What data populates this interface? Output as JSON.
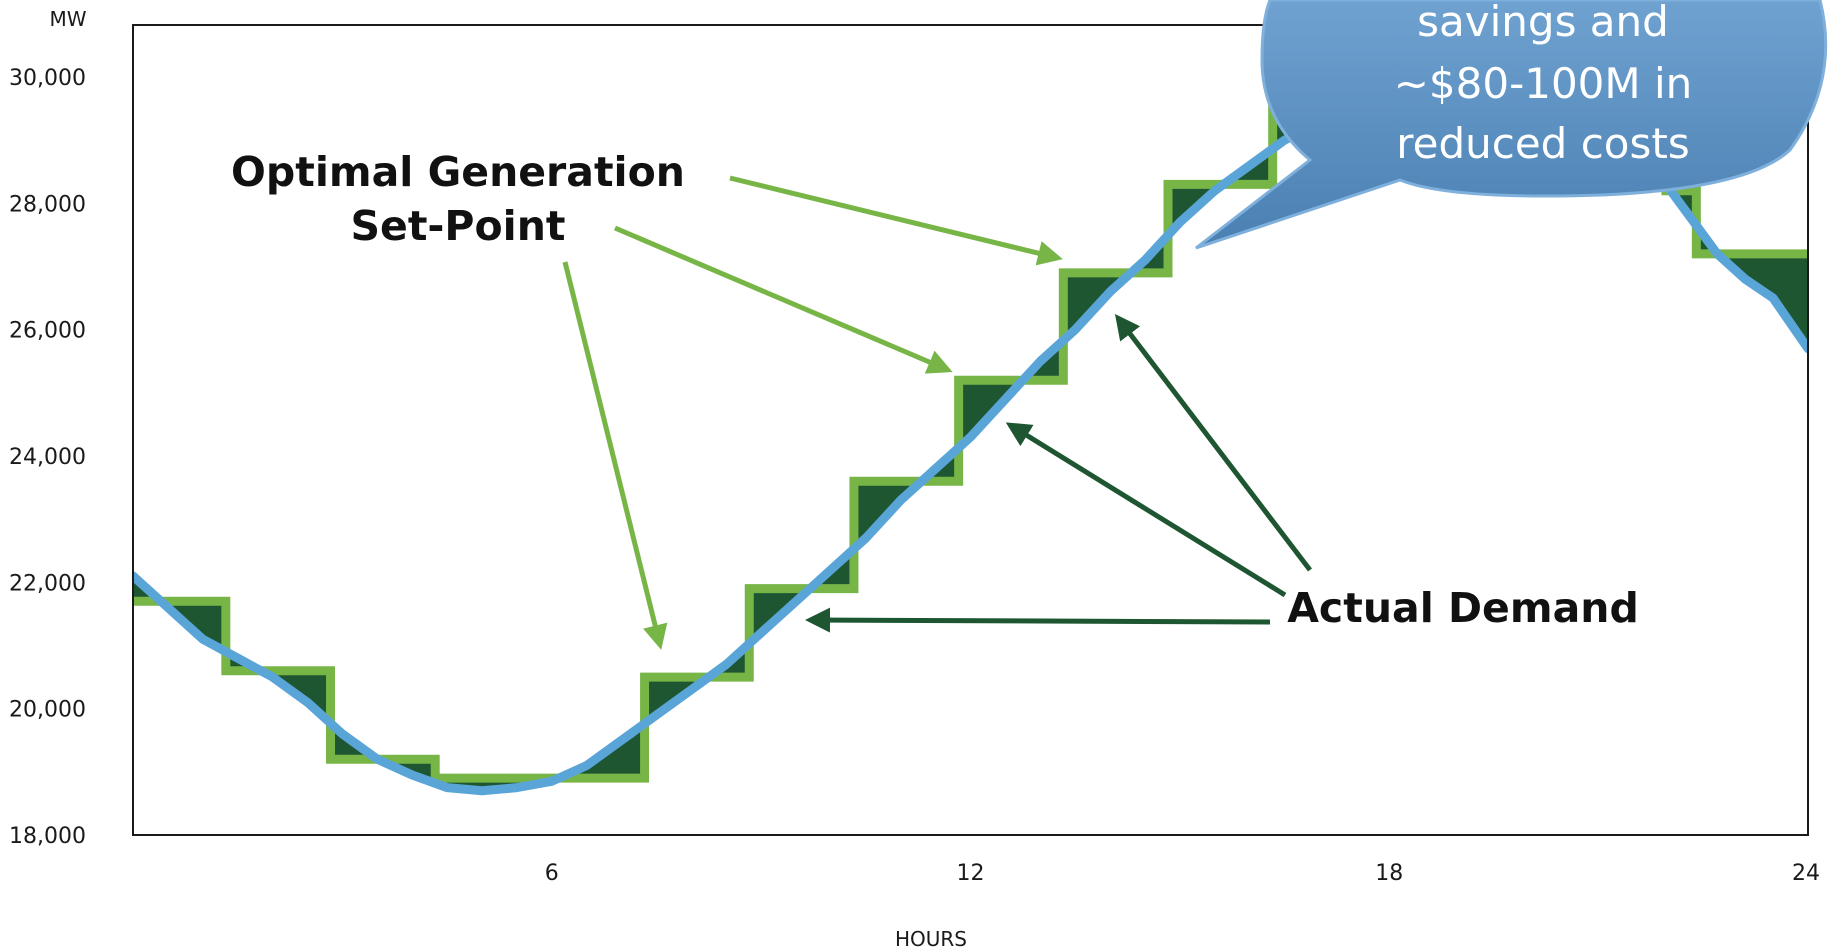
{
  "chart_data": {
    "type": "line",
    "title": "",
    "xlabel": "HOURS",
    "ylabel": "MW",
    "xlim": [
      0,
      24
    ],
    "ylim": [
      18000,
      30000
    ],
    "x_ticks": [
      6,
      12,
      18,
      24
    ],
    "x_tick_labels": [
      "6",
      "12",
      "18",
      "24"
    ],
    "y_ticks": [
      18000,
      20000,
      22000,
      24000,
      26000,
      28000,
      30000
    ],
    "y_tick_labels": [
      "18,000",
      "20,000",
      "22,000",
      "24,000",
      "26,000",
      "28,000",
      "30,000"
    ],
    "grid": false,
    "series": [
      {
        "name": "Optimal Generation Set-Point",
        "style": "step",
        "x": [
          0,
          1.33,
          2.83,
          4.33,
          5.83,
          7.33,
          8.83,
          10.33,
          11.83,
          13.33,
          14.83,
          16.33
        ],
        "values": [
          21700,
          20600,
          19200,
          18900,
          18900,
          20500,
          21900,
          23600,
          25200,
          26900,
          28300,
          29500
        ]
      },
      {
        "name": "Actual Demand",
        "style": "line",
        "x": [
          0,
          0.5,
          1.0,
          1.5,
          2.0,
          2.5,
          3.0,
          3.5,
          4.0,
          4.5,
          5.0,
          5.5,
          6.0,
          6.5,
          7.0,
          7.5,
          8.0,
          8.5,
          9.0,
          9.5,
          10.0,
          10.5,
          11.0,
          11.5,
          12.0,
          12.5,
          13.0,
          13.5,
          14.0,
          14.5,
          15.0,
          15.5,
          16.0,
          16.5,
          17.0
        ],
        "values": [
          22100,
          21600,
          21100,
          20800,
          20500,
          20100,
          19600,
          19200,
          18950,
          18750,
          18700,
          18750,
          18850,
          19100,
          19500,
          19900,
          20300,
          20700,
          21200,
          21700,
          22200,
          22700,
          23300,
          23800,
          24300,
          24900,
          25500,
          26000,
          26600,
          27100,
          27700,
          28200,
          28600,
          29000,
          29300
        ]
      },
      {
        "name": "",
        "style": "step",
        "x": [
          21.9,
          22.4,
          24
        ],
        "values": [
          28200,
          27200,
          27200
        ]
      },
      {
        "name": "",
        "style": "line",
        "x": [
          21.9,
          22.3,
          22.7,
          23.1,
          23.5,
          24
        ],
        "values": [
          28400,
          27800,
          27200,
          26800,
          26500,
          25700
        ]
      }
    ],
    "colors": {
      "setpoint_outline": "#77b547",
      "setpoint_fill": "#1e5631",
      "demand": "#5aa5d8",
      "arrow_setpoint": "#77b547",
      "arrow_demand": "#1e5631",
      "bubble": "#5b8fc0",
      "axis": "#1a1a1a"
    },
    "annotations": [
      {
        "text_lines": [
          "Optimal Generation",
          "Set-Point"
        ]
      },
      {
        "text_lines": [
          "Actual Demand"
        ]
      }
    ],
    "callout": {
      "text_lines": [
        "savings and",
        "~$80-100M in",
        "reduced costs"
      ]
    }
  }
}
